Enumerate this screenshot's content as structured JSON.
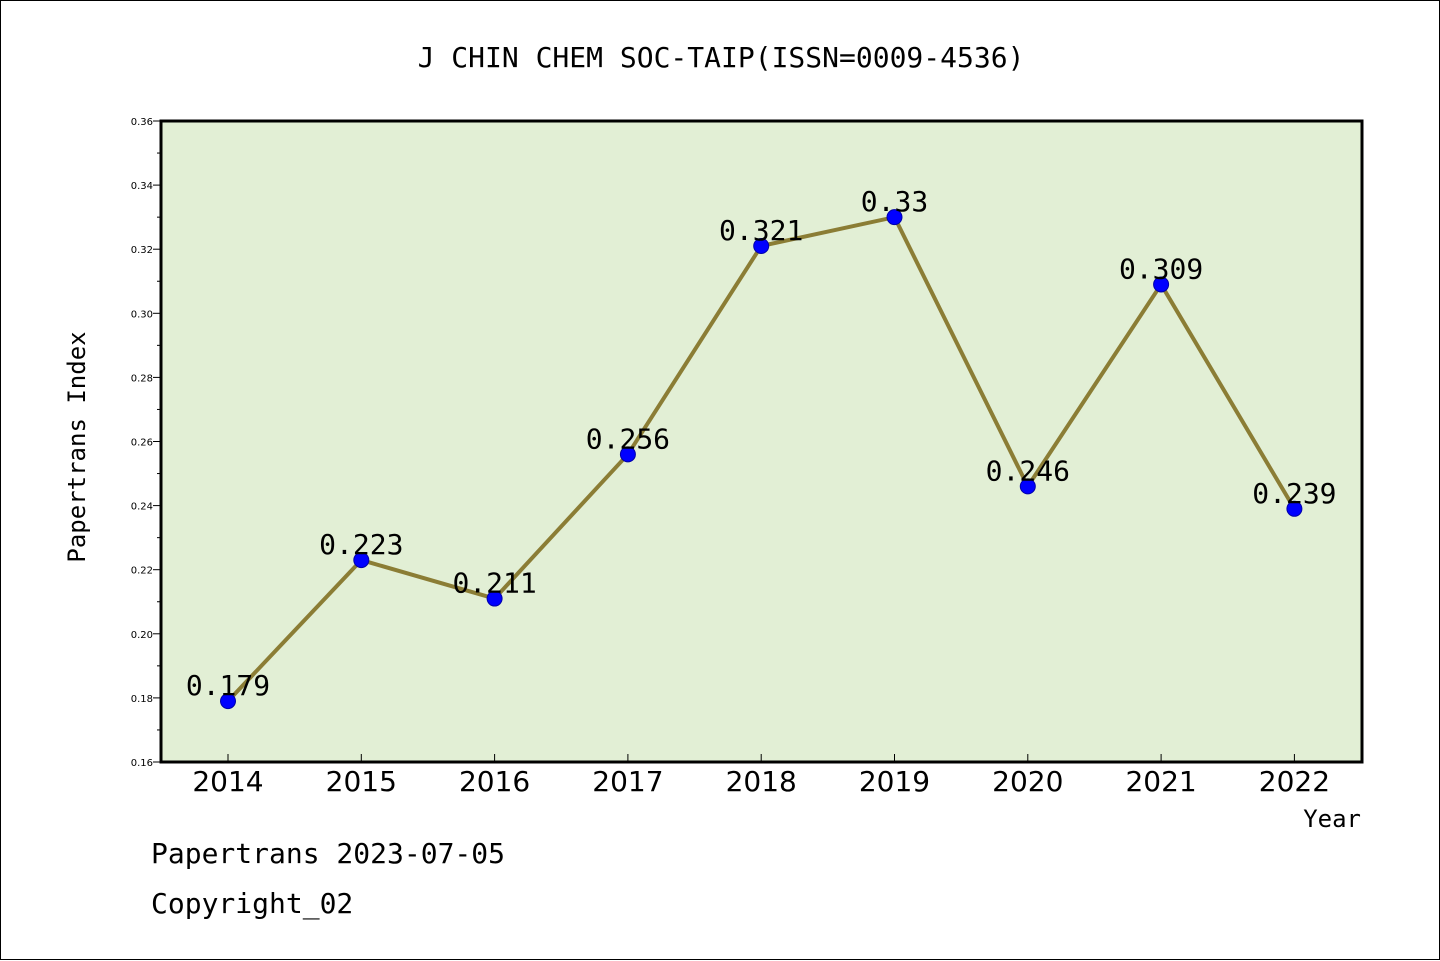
{
  "chart_data": {
    "type": "line",
    "title": "J CHIN CHEM SOC-TAIP(ISSN=0009-4536)",
    "xlabel": "Year",
    "ylabel": "Papertrans Index",
    "categories": [
      "2014",
      "2015",
      "2016",
      "2017",
      "2018",
      "2019",
      "2020",
      "2021",
      "2022"
    ],
    "series": [
      {
        "values": [
          0.179,
          0.223,
          0.211,
          0.256,
          0.321,
          0.33,
          0.246,
          0.309,
          0.239
        ]
      }
    ],
    "data_labels": [
      "0.179",
      "0.223",
      "0.211",
      "0.256",
      "0.321",
      "0.33",
      "0.246",
      "0.309",
      "0.239"
    ],
    "ylim": [
      0.16,
      0.36
    ],
    "yticks": [
      0.16,
      0.18,
      0.2,
      0.22,
      0.24,
      0.26,
      0.28,
      0.3,
      0.32,
      0.34,
      0.36
    ],
    "ytick_labels": [
      "0.16",
      "0.18",
      "0.20",
      "0.22",
      "0.24",
      "0.26",
      "0.28",
      "0.30",
      "0.32",
      "0.34",
      "0.36"
    ],
    "grid": false,
    "colors": {
      "plot_background": "#e2efd5",
      "line": "#8b7d35",
      "marker": "#0000ff"
    }
  },
  "footer": {
    "line1": "Papertrans 2023-07-05",
    "line2": "Copyright_02"
  }
}
